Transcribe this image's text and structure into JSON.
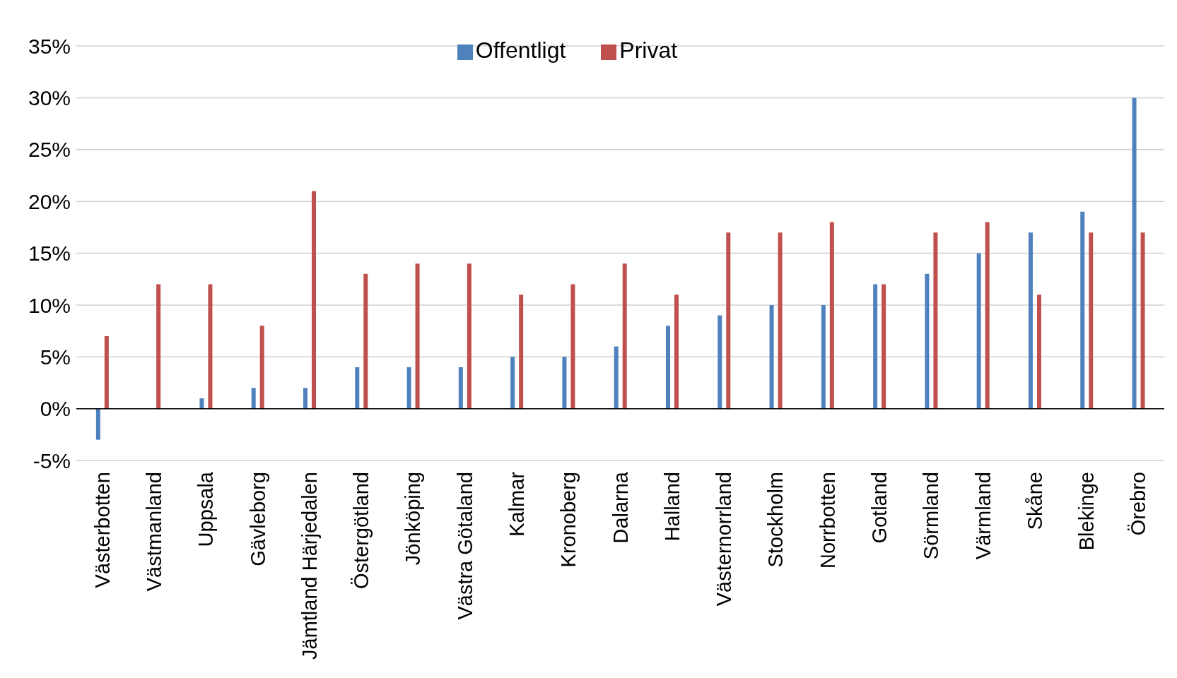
{
  "chart_data": {
    "type": "bar",
    "categories": [
      "Västerbotten",
      "Västmanland",
      "Uppsala",
      "Gävleborg",
      "Jämtland Härjedalen",
      "Östergötland",
      "Jönköping",
      "Västra Götaland",
      "Kalmar",
      "Kronoberg",
      "Dalarna",
      "Halland",
      "Västernorrland",
      "Stockholm",
      "Norrbotten",
      "Gotland",
      "Sörmland",
      "Värmland",
      "Skåne",
      "Blekinge",
      "Örebro"
    ],
    "series": [
      {
        "name": "Offentligt",
        "color": "#4f81bd",
        "values": [
          -3,
          0,
          1,
          2,
          2,
          4,
          4,
          4,
          5,
          5,
          6,
          8,
          9,
          10,
          10,
          12,
          13,
          15,
          17,
          19,
          30
        ]
      },
      {
        "name": "Privat",
        "color": "#c0504d",
        "values": [
          7,
          12,
          12,
          8,
          21,
          13,
          14,
          14,
          11,
          12,
          14,
          11,
          17,
          17,
          18,
          12,
          17,
          18,
          11,
          17,
          17
        ]
      }
    ],
    "ylim": [
      -5,
      35
    ],
    "yticks": [
      {
        "value": -5,
        "label": "-5%"
      },
      {
        "value": 0,
        "label": "0%"
      },
      {
        "value": 5,
        "label": "5%"
      },
      {
        "value": 10,
        "label": "10%"
      },
      {
        "value": 15,
        "label": "15%"
      },
      {
        "value": 20,
        "label": "20%"
      },
      {
        "value": 25,
        "label": "25%"
      },
      {
        "value": 30,
        "label": "30%"
      },
      {
        "value": 35,
        "label": "35%"
      }
    ],
    "grid": "y",
    "legend": "top"
  }
}
